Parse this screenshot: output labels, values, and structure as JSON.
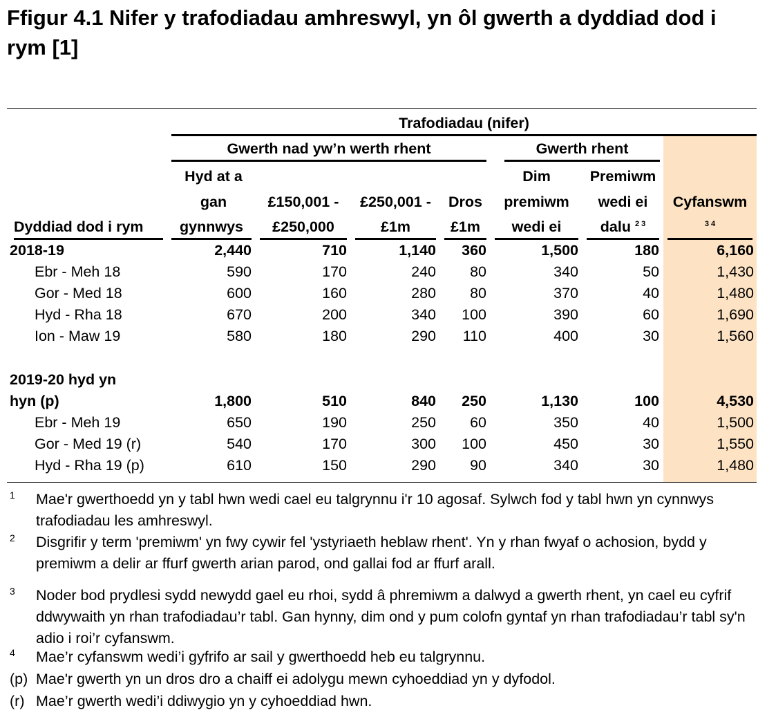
{
  "title": "Ffigur 4.1  Nifer y trafodiadau amhreswyl, yn ôl gwerth a dyddiad dod i rym [1]",
  "header": {
    "group_top": "Trafodiadau (nifer)",
    "group_nonrent": "Gwerth nad yw’n werth rhent",
    "group_rent": "Gwerth rhent",
    "row_label": "Dyddiad dod i rym",
    "columns": [
      [
        "Hyd at a",
        "gan",
        "gynnwys"
      ],
      [
        "",
        "£150,001 -",
        "£250,000"
      ],
      [
        "",
        "£250,001 -",
        "£1m"
      ],
      [
        "",
        "Dros",
        "£1m"
      ],
      [
        "Dim",
        "premiwm",
        "wedi ei"
      ],
      [
        "Premiwm",
        "wedi ei",
        "dalu"
      ],
      [
        "",
        "Cyfanswm",
        ""
      ]
    ],
    "col6_note": "2 3",
    "col7_note": "3 4"
  },
  "accent_color": "#fde3c3",
  "rows": [
    {
      "label": "2018-19",
      "bold": true,
      "values": [
        "2,440",
        "710",
        "1,140",
        "360",
        "1,500",
        "180",
        "6,160"
      ]
    },
    {
      "label": "Ebr - Meh 18",
      "values": [
        "590",
        "170",
        "240",
        "80",
        "340",
        "50",
        "1,430"
      ]
    },
    {
      "label": "Gor - Med 18",
      "values": [
        "600",
        "160",
        "280",
        "80",
        "370",
        "40",
        "1,480"
      ]
    },
    {
      "label": "Hyd - Rha 18",
      "values": [
        "670",
        "200",
        "340",
        "100",
        "390",
        "60",
        "1,690"
      ]
    },
    {
      "label": "Ion - Maw 19",
      "values": [
        "580",
        "180",
        "290",
        "110",
        "400",
        "30",
        "1,560"
      ]
    },
    {
      "label": "2019-20 hyd yn",
      "bold": true,
      "values": [
        "",
        "",
        "",
        "",
        "",
        "",
        ""
      ]
    },
    {
      "label": "hyn (p)",
      "bold": true,
      "values": [
        "1,800",
        "510",
        "840",
        "250",
        "1,130",
        "100",
        "4,530"
      ]
    },
    {
      "label": "Ebr - Meh 19",
      "values": [
        "650",
        "190",
        "250",
        "60",
        "350",
        "40",
        "1,500"
      ]
    },
    {
      "label": "Gor - Med 19 (r)",
      "values": [
        "540",
        "170",
        "300",
        "100",
        "450",
        "30",
        "1,550"
      ]
    },
    {
      "label": "Hyd - Rha 19 (p)",
      "values": [
        "610",
        "150",
        "290",
        "90",
        "340",
        "30",
        "1,480"
      ]
    }
  ],
  "footnotes": [
    {
      "mark": "1",
      "text": "Mae'r gwerthoedd yn y tabl hwn wedi cael eu talgrynnu i'r 10 agosaf. Sylwch fod y tabl hwn yn cynnwys trafodiadau les amhreswyl."
    },
    {
      "mark": "2",
      "text": "Disgrifir y term 'premiwm' yn fwy cywir fel 'ystyriaeth heblaw rhent'. Yn y rhan fwyaf o achosion, bydd y premiwm a delir ar ffurf gwerth arian parod, ond gallai fod ar ffurf arall."
    },
    {
      "mark": "3",
      "text": "Noder bod prydlesi sydd newydd gael eu rhoi, sydd â phremiwm a dalwyd a gwerth rhent, yn cael eu cyfrif ddwywaith yn rhan trafodiadau’r tabl. Gan hynny, dim ond y pum colofn gyntaf yn rhan trafodiadau’r tabl sy'n adio i roi’r cyfanswm."
    },
    {
      "mark": "4",
      "text": "Mae’r cyfanswm wedi’i gyfrifo ar sail y gwerthoedd heb eu talgrynnu."
    },
    {
      "mark": "(p)",
      "text": "Mae'r gwerth yn un dros dro a chaiff ei adolygu mewn cyhoeddiad yn y dyfodol."
    },
    {
      "mark": "(r)",
      "text": "Mae’r gwerth wedi’i ddiwygio yn y cyhoeddiad hwn."
    }
  ]
}
